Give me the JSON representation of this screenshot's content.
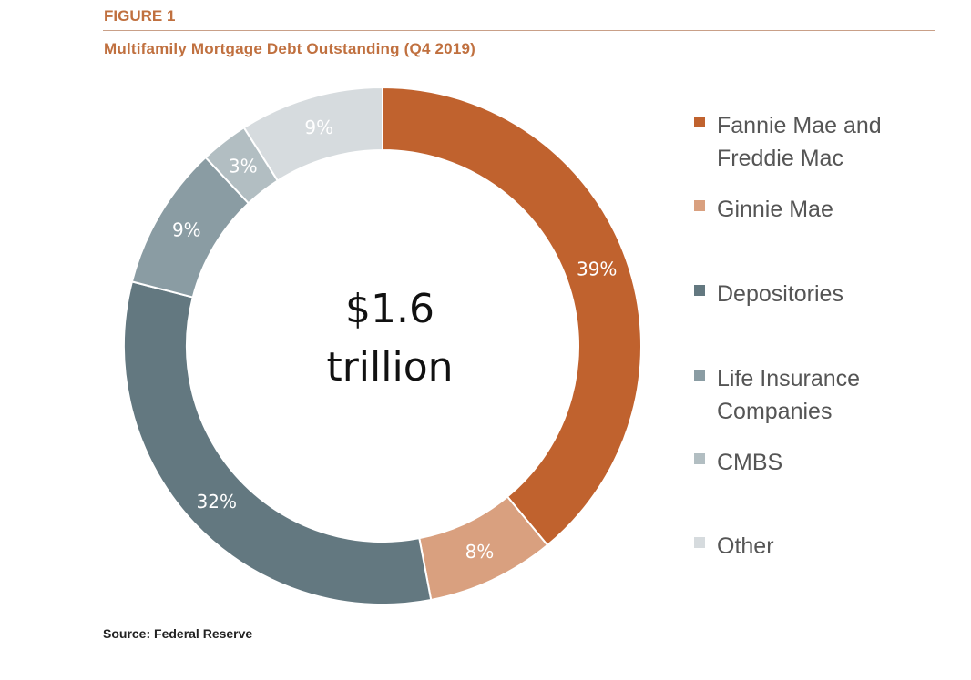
{
  "figure_label": "FIGURE 1",
  "chart_data": {
    "type": "pie",
    "variant": "donut",
    "title": "Multifamily Mortgage Debt Outstanding (Q4 2019)",
    "center_label": [
      "$1.6",
      "trillion"
    ],
    "unit": "%",
    "legend_position": "right",
    "slices": [
      {
        "name": "Fannie Mae and Freddie Mac",
        "legend_lines": [
          "Fannie Mae and",
          "Freddie Mac"
        ],
        "value": 39,
        "label": "39%",
        "color": "#c0622e"
      },
      {
        "name": "Ginnie Mae",
        "legend_lines": [
          "Ginnie Mae"
        ],
        "value": 8,
        "label": "8%",
        "color": "#d9a07f"
      },
      {
        "name": "Depositories",
        "legend_lines": [
          "Depositories"
        ],
        "value": 32,
        "label": "32%",
        "color": "#637880"
      },
      {
        "name": "Life Insurance Companies",
        "legend_lines": [
          "Life Insurance",
          "Companies"
        ],
        "value": 9,
        "label": "9%",
        "color": "#8a9ca3"
      },
      {
        "name": "CMBS",
        "legend_lines": [
          "CMBS"
        ],
        "value": 3,
        "label": "3%",
        "color": "#b2bec2"
      },
      {
        "name": "Other",
        "legend_lines": [
          "Other"
        ],
        "value": 9,
        "label": "9%",
        "color": "#d6dbde"
      }
    ]
  },
  "source": "Source: Federal Reserve"
}
